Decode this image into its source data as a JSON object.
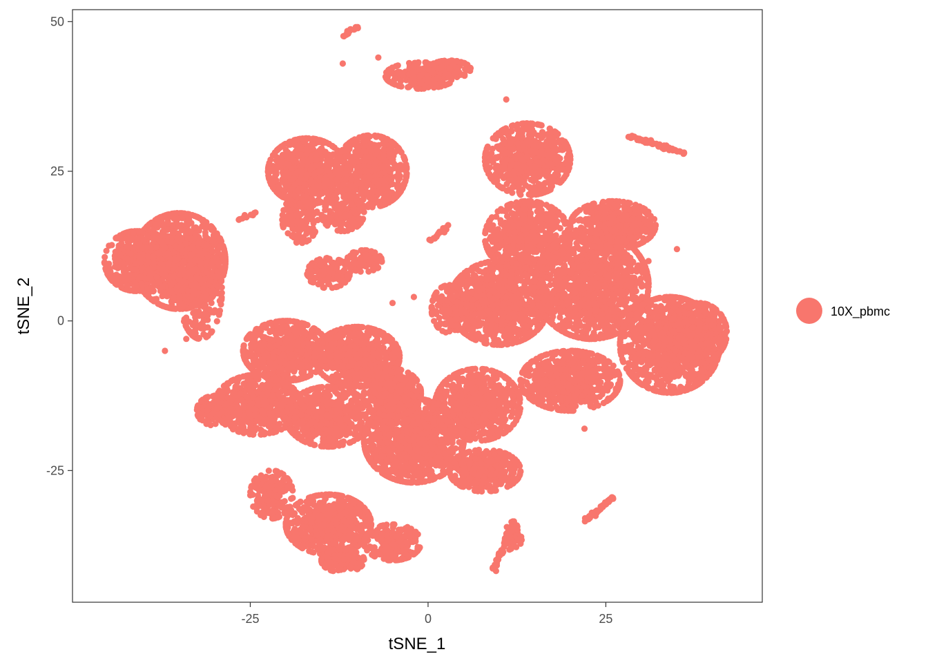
{
  "chart_data": {
    "type": "scatter",
    "title": "",
    "xlabel": "tSNE_1",
    "ylabel": "tSNE_2",
    "xlim": [
      -50,
      47
    ],
    "ylim": [
      -47,
      52
    ],
    "x_ticks": [
      -25,
      0,
      25
    ],
    "y_ticks": [
      -25,
      0,
      25,
      50
    ],
    "x_tick_labels": [
      "-25",
      "0",
      "25"
    ],
    "y_tick_labels": [
      "-25",
      "0",
      "25",
      "50"
    ],
    "grid": false,
    "legend_position": "right",
    "series": [
      {
        "name": "10X_pbmc",
        "color": "#F8766D",
        "clusters": [
          {
            "cx": -35,
            "cy": 10,
            "rx": 6.5,
            "ry": 8,
            "n": 1100
          },
          {
            "cx": -41,
            "cy": 10,
            "rx": 4.5,
            "ry": 5,
            "n": 450
          },
          {
            "cx": -32,
            "cy": 5,
            "rx": 3,
            "ry": 8,
            "n": 250
          },
          {
            "cx": -17,
            "cy": 25,
            "rx": 5.5,
            "ry": 5.5,
            "n": 700
          },
          {
            "cx": -8,
            "cy": 25,
            "rx": 5,
            "ry": 6,
            "n": 600
          },
          {
            "cx": -18,
            "cy": 17,
            "rx": 2.5,
            "ry": 4,
            "n": 150
          },
          {
            "cx": -12,
            "cy": 18,
            "rx": 3,
            "ry": 3,
            "n": 150
          },
          {
            "cx": -14,
            "cy": 8,
            "rx": 3,
            "ry": 2.5,
            "n": 150
          },
          {
            "cx": -9,
            "cy": 10,
            "rx": 2.5,
            "ry": 1.8,
            "n": 100
          },
          {
            "cx": -1,
            "cy": 41,
            "rx": 5,
            "ry": 2.2,
            "n": 220
          },
          {
            "cx": 3,
            "cy": 42,
            "rx": 3,
            "ry": 1.5,
            "n": 120
          },
          {
            "cx": 14,
            "cy": 27,
            "rx": 6,
            "ry": 6,
            "n": 650
          },
          {
            "cx": 14,
            "cy": 14,
            "rx": 6,
            "ry": 6,
            "n": 600
          },
          {
            "cx": 10,
            "cy": 3,
            "rx": 7,
            "ry": 7,
            "n": 1000
          },
          {
            "cx": 23,
            "cy": 6,
            "rx": 8,
            "ry": 9,
            "n": 1300
          },
          {
            "cx": 34,
            "cy": -4,
            "rx": 7,
            "ry": 8,
            "n": 1000
          },
          {
            "cx": 38,
            "cy": -2,
            "rx": 4,
            "ry": 5,
            "n": 400
          },
          {
            "cx": 26,
            "cy": 16,
            "rx": 6,
            "ry": 4,
            "n": 450
          },
          {
            "cx": 20,
            "cy": -10,
            "rx": 7,
            "ry": 5,
            "n": 700
          },
          {
            "cx": 7,
            "cy": -14,
            "rx": 6,
            "ry": 6,
            "n": 700
          },
          {
            "cx": 3,
            "cy": 2,
            "rx": 2.5,
            "ry": 4,
            "n": 120
          },
          {
            "cx": -20,
            "cy": -5,
            "rx": 6,
            "ry": 5,
            "n": 700
          },
          {
            "cx": -10,
            "cy": -6,
            "rx": 6,
            "ry": 5,
            "n": 700
          },
          {
            "cx": -24,
            "cy": -14,
            "rx": 6,
            "ry": 5,
            "n": 600
          },
          {
            "cx": -14,
            "cy": -16,
            "rx": 6,
            "ry": 5,
            "n": 600
          },
          {
            "cx": -30,
            "cy": -15,
            "rx": 2.5,
            "ry": 2.5,
            "n": 150
          },
          {
            "cx": -2,
            "cy": -20,
            "rx": 7,
            "ry": 7,
            "n": 1000
          },
          {
            "cx": -5,
            "cy": -12,
            "rx": 4,
            "ry": 4,
            "n": 350
          },
          {
            "cx": 8,
            "cy": -25,
            "rx": 5,
            "ry": 3.5,
            "n": 400
          },
          {
            "cx": -14,
            "cy": -34,
            "rx": 6,
            "ry": 5,
            "n": 650
          },
          {
            "cx": -22,
            "cy": -29,
            "rx": 3,
            "ry": 4,
            "n": 220
          },
          {
            "cx": -5,
            "cy": -37,
            "rx": 4,
            "ry": 3,
            "n": 250
          },
          {
            "cx": -12,
            "cy": -40,
            "rx": 3,
            "ry": 2,
            "n": 150
          },
          {
            "cx": 12,
            "cy": -36,
            "rx": 1.2,
            "ry": 2.5,
            "n": 50
          }
        ],
        "lines": [
          {
            "x1": 28,
            "y1": 31,
            "x2": 36,
            "y2": 28,
            "n": 70
          },
          {
            "x1": 22,
            "y1": -33.5,
            "x2": 26,
            "y2": -29.5,
            "n": 50
          },
          {
            "x1": 9,
            "y1": -42,
            "x2": 12,
            "y2": -34,
            "n": 40
          },
          {
            "x1": -12,
            "y1": 47.5,
            "x2": -10,
            "y2": 49,
            "n": 15
          },
          {
            "x1": -27,
            "y1": 17,
            "x2": -24,
            "y2": 18,
            "n": 12
          },
          {
            "x1": 0,
            "y1": 13,
            "x2": 3,
            "y2": 16,
            "n": 20
          }
        ],
        "points": [
          [
            -12,
            43
          ],
          [
            -7,
            44
          ],
          [
            11,
            37
          ],
          [
            -37,
            -5
          ],
          [
            -34,
            -3
          ],
          [
            22,
            -18
          ],
          [
            31,
            10
          ],
          [
            35,
            12
          ],
          [
            41,
            0
          ],
          [
            -5,
            3
          ],
          [
            -2,
            4
          ]
        ]
      }
    ]
  }
}
